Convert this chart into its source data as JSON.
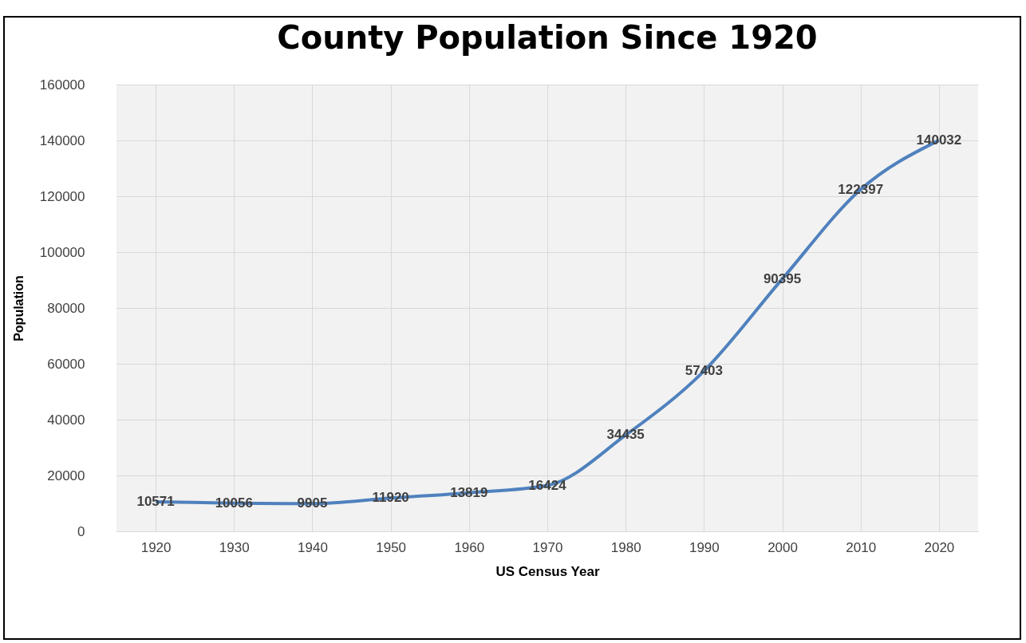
{
  "chart_data": {
    "type": "line",
    "title": "County Population Since 1920",
    "xlabel": "US Census Year",
    "ylabel": "Population",
    "categories": [
      "1920",
      "1930",
      "1940",
      "1950",
      "1960",
      "1970",
      "1980",
      "1990",
      "2000",
      "2010",
      "2020"
    ],
    "series": [
      {
        "color": "#4f81bd",
        "values": [
          10571,
          10056,
          9905,
          11920,
          13819,
          16424,
          34435,
          57403,
          90395,
          122397,
          140032
        ]
      }
    ],
    "ylim": [
      0,
      160000
    ],
    "yticks": [
      0,
      20000,
      40000,
      60000,
      80000,
      100000,
      120000,
      140000,
      160000
    ],
    "grid": true,
    "data_labels": true,
    "marker": "none",
    "line_style": "solid"
  }
}
